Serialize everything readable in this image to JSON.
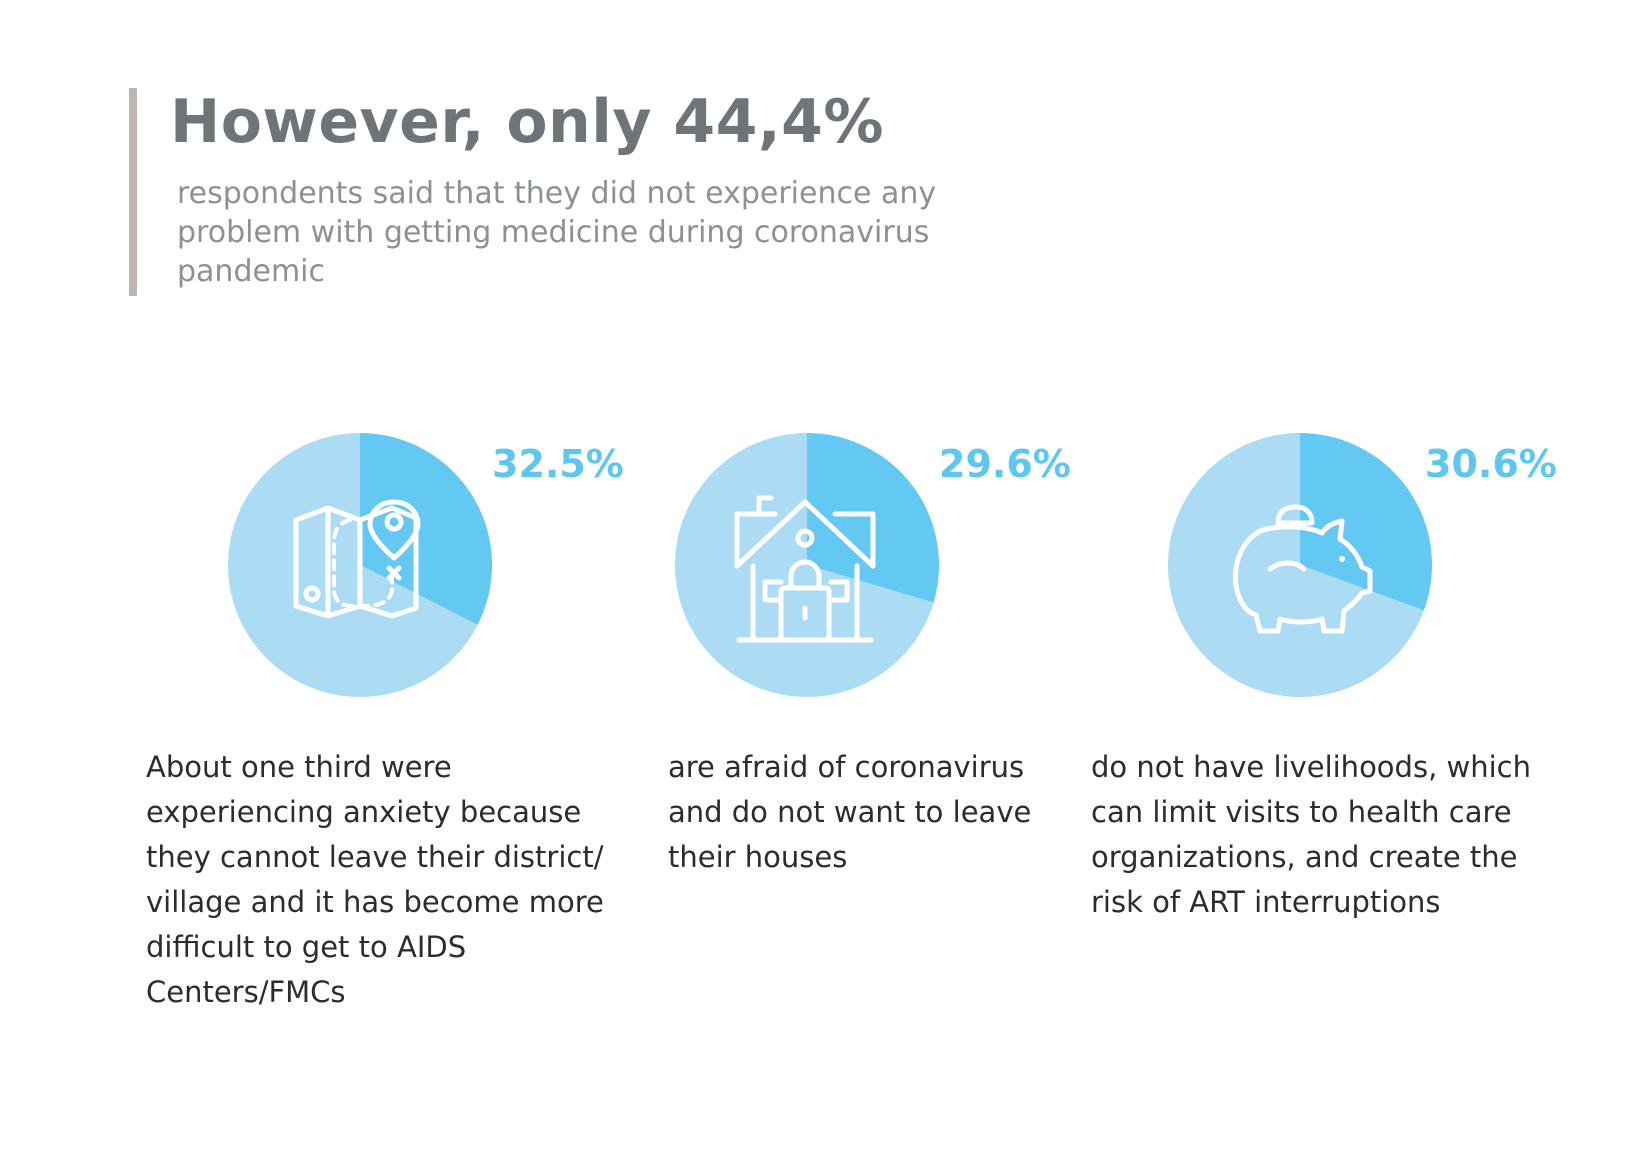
{
  "header": {
    "title": "However, only 44,4%",
    "subtitle": "respondents said that they did not experience any problem with getting medicine during coronavirus pandemic"
  },
  "colors": {
    "accent": "#5ec7f0",
    "pie_base": "#abdcf3",
    "pie_highlight": "#63c8f2",
    "title": "#6f7479",
    "subtitle": "#8c9196",
    "body_text": "#2a2c30",
    "header_bar": "#bcb6b1"
  },
  "chart_data": [
    {
      "type": "pie",
      "value_label": "32.5%",
      "slices": [
        {
          "value": 32.5
        },
        {
          "value": 67.5
        }
      ],
      "icon": "map-pin-icon",
      "description": "About one third were experiencing anxiety because they cannot leave their district/ village and it has become more difficult to get to AIDS Centers/FMCs"
    },
    {
      "type": "pie",
      "value_label": "29.6%",
      "slices": [
        {
          "value": 29.6
        },
        {
          "value": 70.4
        }
      ],
      "icon": "locked-house-icon",
      "description": "are afraid of coronavirus and do not want to leave their houses"
    },
    {
      "type": "pie",
      "value_label": "30.6%",
      "slices": [
        {
          "value": 30.6
        },
        {
          "value": 69.4
        }
      ],
      "icon": "piggy-bank-icon",
      "description": "do not have livelihoods, which can limit visits to health care organizations, and create the risk of ART interruptions"
    }
  ]
}
